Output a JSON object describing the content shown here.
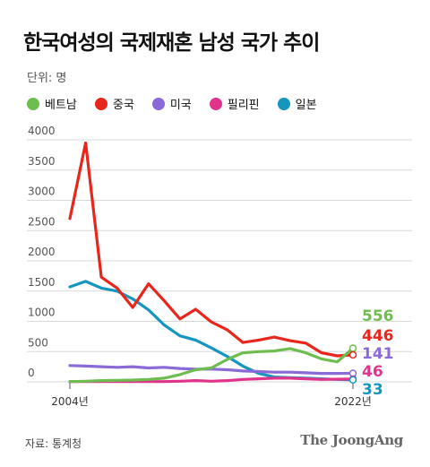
{
  "title": "한국여성의 국제재혼 남성 국가 추이",
  "unit_label": "단위: 명",
  "source": "자료: 통계청",
  "logo": "The JoongAng",
  "chart_data": {
    "type": "line",
    "x": [
      2004,
      2005,
      2006,
      2007,
      2008,
      2009,
      2010,
      2011,
      2012,
      2013,
      2014,
      2015,
      2016,
      2017,
      2018,
      2019,
      2020,
      2021,
      2022
    ],
    "x_tick_labels": [
      "2004년",
      "2022년"
    ],
    "y_ticks": [
      0,
      500,
      1000,
      1500,
      2000,
      2500,
      3000,
      3500,
      4000
    ],
    "ylim": [
      0,
      4000
    ],
    "legend_position": "top",
    "grid": "horizontal",
    "series": [
      {
        "name": "베트남",
        "color": "#6dbd4f",
        "values": [
          5,
          10,
          20,
          25,
          30,
          40,
          60,
          120,
          200,
          230,
          370,
          480,
          500,
          510,
          550,
          480,
          380,
          330,
          556
        ]
      },
      {
        "name": "중국",
        "color": "#e8261c",
        "values": [
          2700,
          3950,
          1730,
          1550,
          1230,
          1620,
          1340,
          1040,
          1200,
          990,
          860,
          650,
          690,
          740,
          680,
          640,
          480,
          430,
          446
        ]
      },
      {
        "name": "미국",
        "color": "#8a6ad6",
        "values": [
          270,
          260,
          250,
          240,
          250,
          230,
          240,
          220,
          210,
          210,
          200,
          180,
          170,
          160,
          160,
          150,
          140,
          140,
          141
        ]
      },
      {
        "name": "필리핀",
        "color": "#e0348c",
        "values": [
          5,
          5,
          5,
          5,
          5,
          5,
          5,
          10,
          20,
          10,
          20,
          40,
          50,
          60,
          60,
          50,
          40,
          45,
          46
        ]
      },
      {
        "name": "일본",
        "color": "#1596bf",
        "values": [
          1570,
          1660,
          1550,
          1500,
          1370,
          1190,
          940,
          760,
          690,
          560,
          420,
          260,
          140,
          80,
          70,
          60,
          50,
          40,
          33
        ]
      }
    ],
    "end_labels": [
      {
        "text": "556",
        "color": "#6dbd4f"
      },
      {
        "text": "446",
        "color": "#e8261c"
      },
      {
        "text": "141",
        "color": "#8a6ad6"
      },
      {
        "text": "46",
        "color": "#e0348c"
      },
      {
        "text": "33",
        "color": "#1596bf"
      }
    ]
  }
}
